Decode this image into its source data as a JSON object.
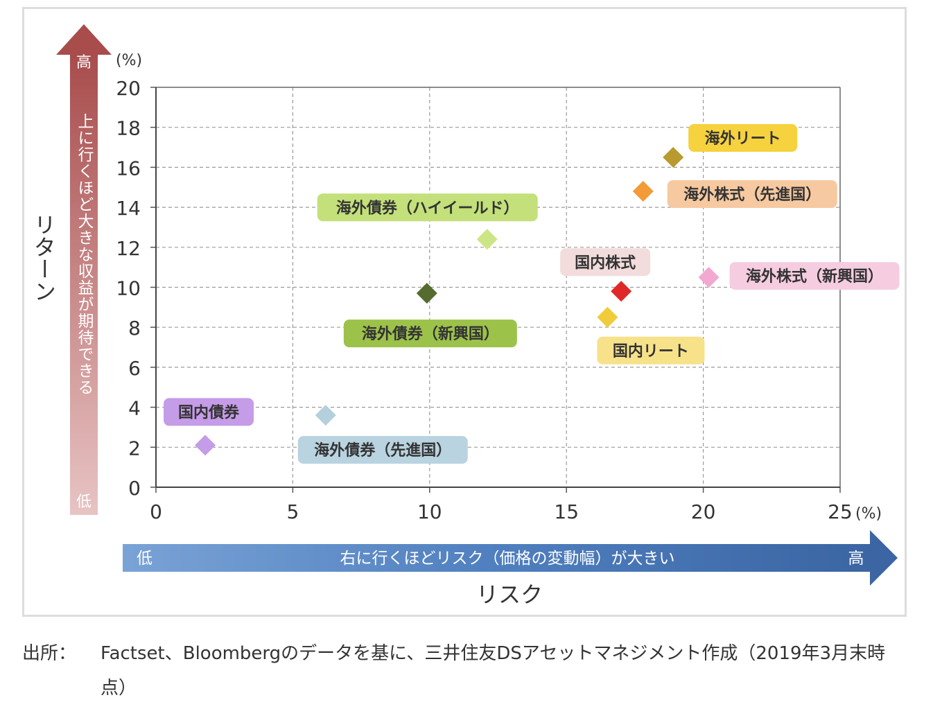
{
  "chart_data": {
    "type": "scatter",
    "title": "",
    "xlabel": "リスク",
    "ylabel": "リターン",
    "x_unit": "(%)",
    "y_unit": "(%)",
    "xlim": [
      0,
      25
    ],
    "ylim": [
      0,
      20
    ],
    "x_ticks": [
      "0",
      "5",
      "10",
      "15",
      "20",
      "25"
    ],
    "y_ticks": [
      "0",
      "2",
      "4",
      "6",
      "8",
      "10",
      "12",
      "14",
      "16",
      "18",
      "20"
    ],
    "grid": true,
    "y_arrow": {
      "high": "高",
      "low": "低",
      "text": "上に行くほど大きな収益が期待できる",
      "color": "#a84c4c"
    },
    "x_arrow": {
      "low": "低",
      "high": "高",
      "text": "右に行くほどリスク（価格の変動幅）が大きい",
      "color": "#3d6aa6"
    },
    "points": [
      {
        "name": "国内債券",
        "x": 1.8,
        "y": 2.1,
        "color": "#c49ce8",
        "label_bg": "#c49ce8"
      },
      {
        "name": "海外債券（先進国）",
        "x": 6.2,
        "y": 3.6,
        "color": "#b5cfdc",
        "label_bg": "#b9d3e0"
      },
      {
        "name": "海外債券（新興国）",
        "x": 9.9,
        "y": 9.7,
        "color": "#556b2f",
        "label_bg": "#9cc24a"
      },
      {
        "name": "海外債券（ハイイールド）",
        "x": 12.1,
        "y": 12.4,
        "color": "#cde685",
        "label_bg": "#c3e07a"
      },
      {
        "name": "国内リート",
        "x": 16.5,
        "y": 8.5,
        "color": "#f0cc3a",
        "label_bg": "#f7e28a"
      },
      {
        "name": "国内株式",
        "x": 17.0,
        "y": 9.8,
        "color": "#e02828",
        "label_bg": "#f2dcdc"
      },
      {
        "name": "海外株式（先進国）",
        "x": 17.8,
        "y": 14.8,
        "color": "#f39b36",
        "label_bg": "#f6c9a0"
      },
      {
        "name": "海外リート",
        "x": 18.9,
        "y": 16.5,
        "color": "#b89a2e",
        "label_bg": "#f5d23e"
      },
      {
        "name": "海外株式（新興国）",
        "x": 20.2,
        "y": 10.5,
        "color": "#f2a8d0",
        "label_bg": "#f6cde0"
      }
    ]
  },
  "source": {
    "label": "出所：",
    "text": "Factset、Bloombergのデータを基に、三井住友DSアセットマネジメント作成（2019年3月末時点）"
  }
}
